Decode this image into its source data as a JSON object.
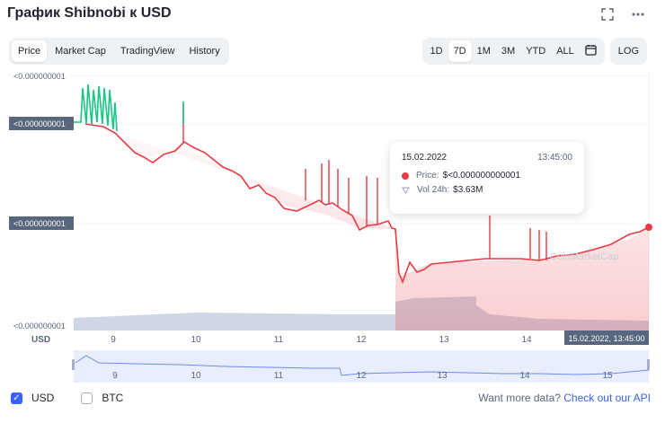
{
  "title": "График Shibnobi к USD",
  "icons": {
    "fullscreen": "fullscreen-icon",
    "more": "more-icon",
    "calendar": "calendar-icon"
  },
  "tabs": [
    "Price",
    "Market Cap",
    "TradingView",
    "History"
  ],
  "ranges": [
    "1D",
    "7D",
    "1M",
    "3M",
    "YTD",
    "ALL"
  ],
  "log_label": "LOG",
  "y_labels": {
    "top": "<0.000000001",
    "upper_badge": "<0.000000001",
    "mid_badge": "<0.000000001",
    "bottom": "<0.000000001"
  },
  "currency_label": "USD",
  "x_labels": [
    "9",
    "10",
    "11",
    "12",
    "13",
    "14"
  ],
  "x_current_badge": "15.02.2022, 13:45:00",
  "nav_labels": [
    "9",
    "10",
    "11",
    "12",
    "13",
    "14",
    "15"
  ],
  "watermark": "CoinMarketCap",
  "tooltip": {
    "date": "15.02.2022",
    "time": "13:45:00",
    "price_label": "Price:",
    "price_value": "$<0.000000000001",
    "vol_label": "Vol 24h:",
    "vol_value": "$3.63M"
  },
  "toggles": [
    {
      "label": "USD",
      "checked": true
    },
    {
      "label": "BTC",
      "checked": false
    }
  ],
  "more_data": {
    "text": "Want more data?",
    "link": "Check out our API"
  },
  "colors": {
    "down": "#ea3943",
    "up": "#16c784",
    "accent": "#3861fb",
    "volume": "#cfd6e4"
  }
}
